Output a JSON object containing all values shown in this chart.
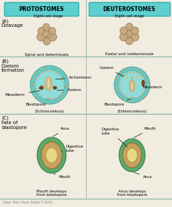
{
  "bg_color": "#f0ece0",
  "title_proto": "PROTOSTOMES",
  "title_deuter": "DEUTEROSTOMES",
  "title_bg": "#5ecece",
  "title_border": "#3aacac",
  "section_A_label": "(A)\nCleavage",
  "section_B_label": "(B)\nCoelom\nformation",
  "section_C_label": "(C)\nFate of\nblastopore",
  "proto_sub": "Eight-cell stage",
  "deuter_sub": "Eight-cell stage",
  "proto_cleavage_note": "Spiral and determinate",
  "deuter_cleavage_note": "Radial and indeterminate",
  "proto_coelom_note": "(Schizocoelous)",
  "deuter_coelom_note": "(Enterocoelous)",
  "proto_fate_note": "Mouth develops\nfrom blastopore",
  "deuter_fate_note": "Anus develops\nfrom blastopore",
  "cell_color": "#c8aa80",
  "cell_outline": "#907050",
  "outer_teal": "#5ecece",
  "outer_teal_dark": "#3aacac",
  "inner_teal": "#90dcd8",
  "archenteron_tan": "#c8a060",
  "mesoderm_brown": "#8b4513",
  "coelom_fill": "#b0e8e0",
  "tube_green": "#5aaa6a",
  "tube_tan": "#c8a060",
  "tube_cream": "#e8d888",
  "footer": "Dept. Biol. Penn State ©2002",
  "divider_color": "#8ab0a0",
  "label_fontsize": 5.0,
  "annot_fontsize": 4.0,
  "note_fontsize": 4.5
}
